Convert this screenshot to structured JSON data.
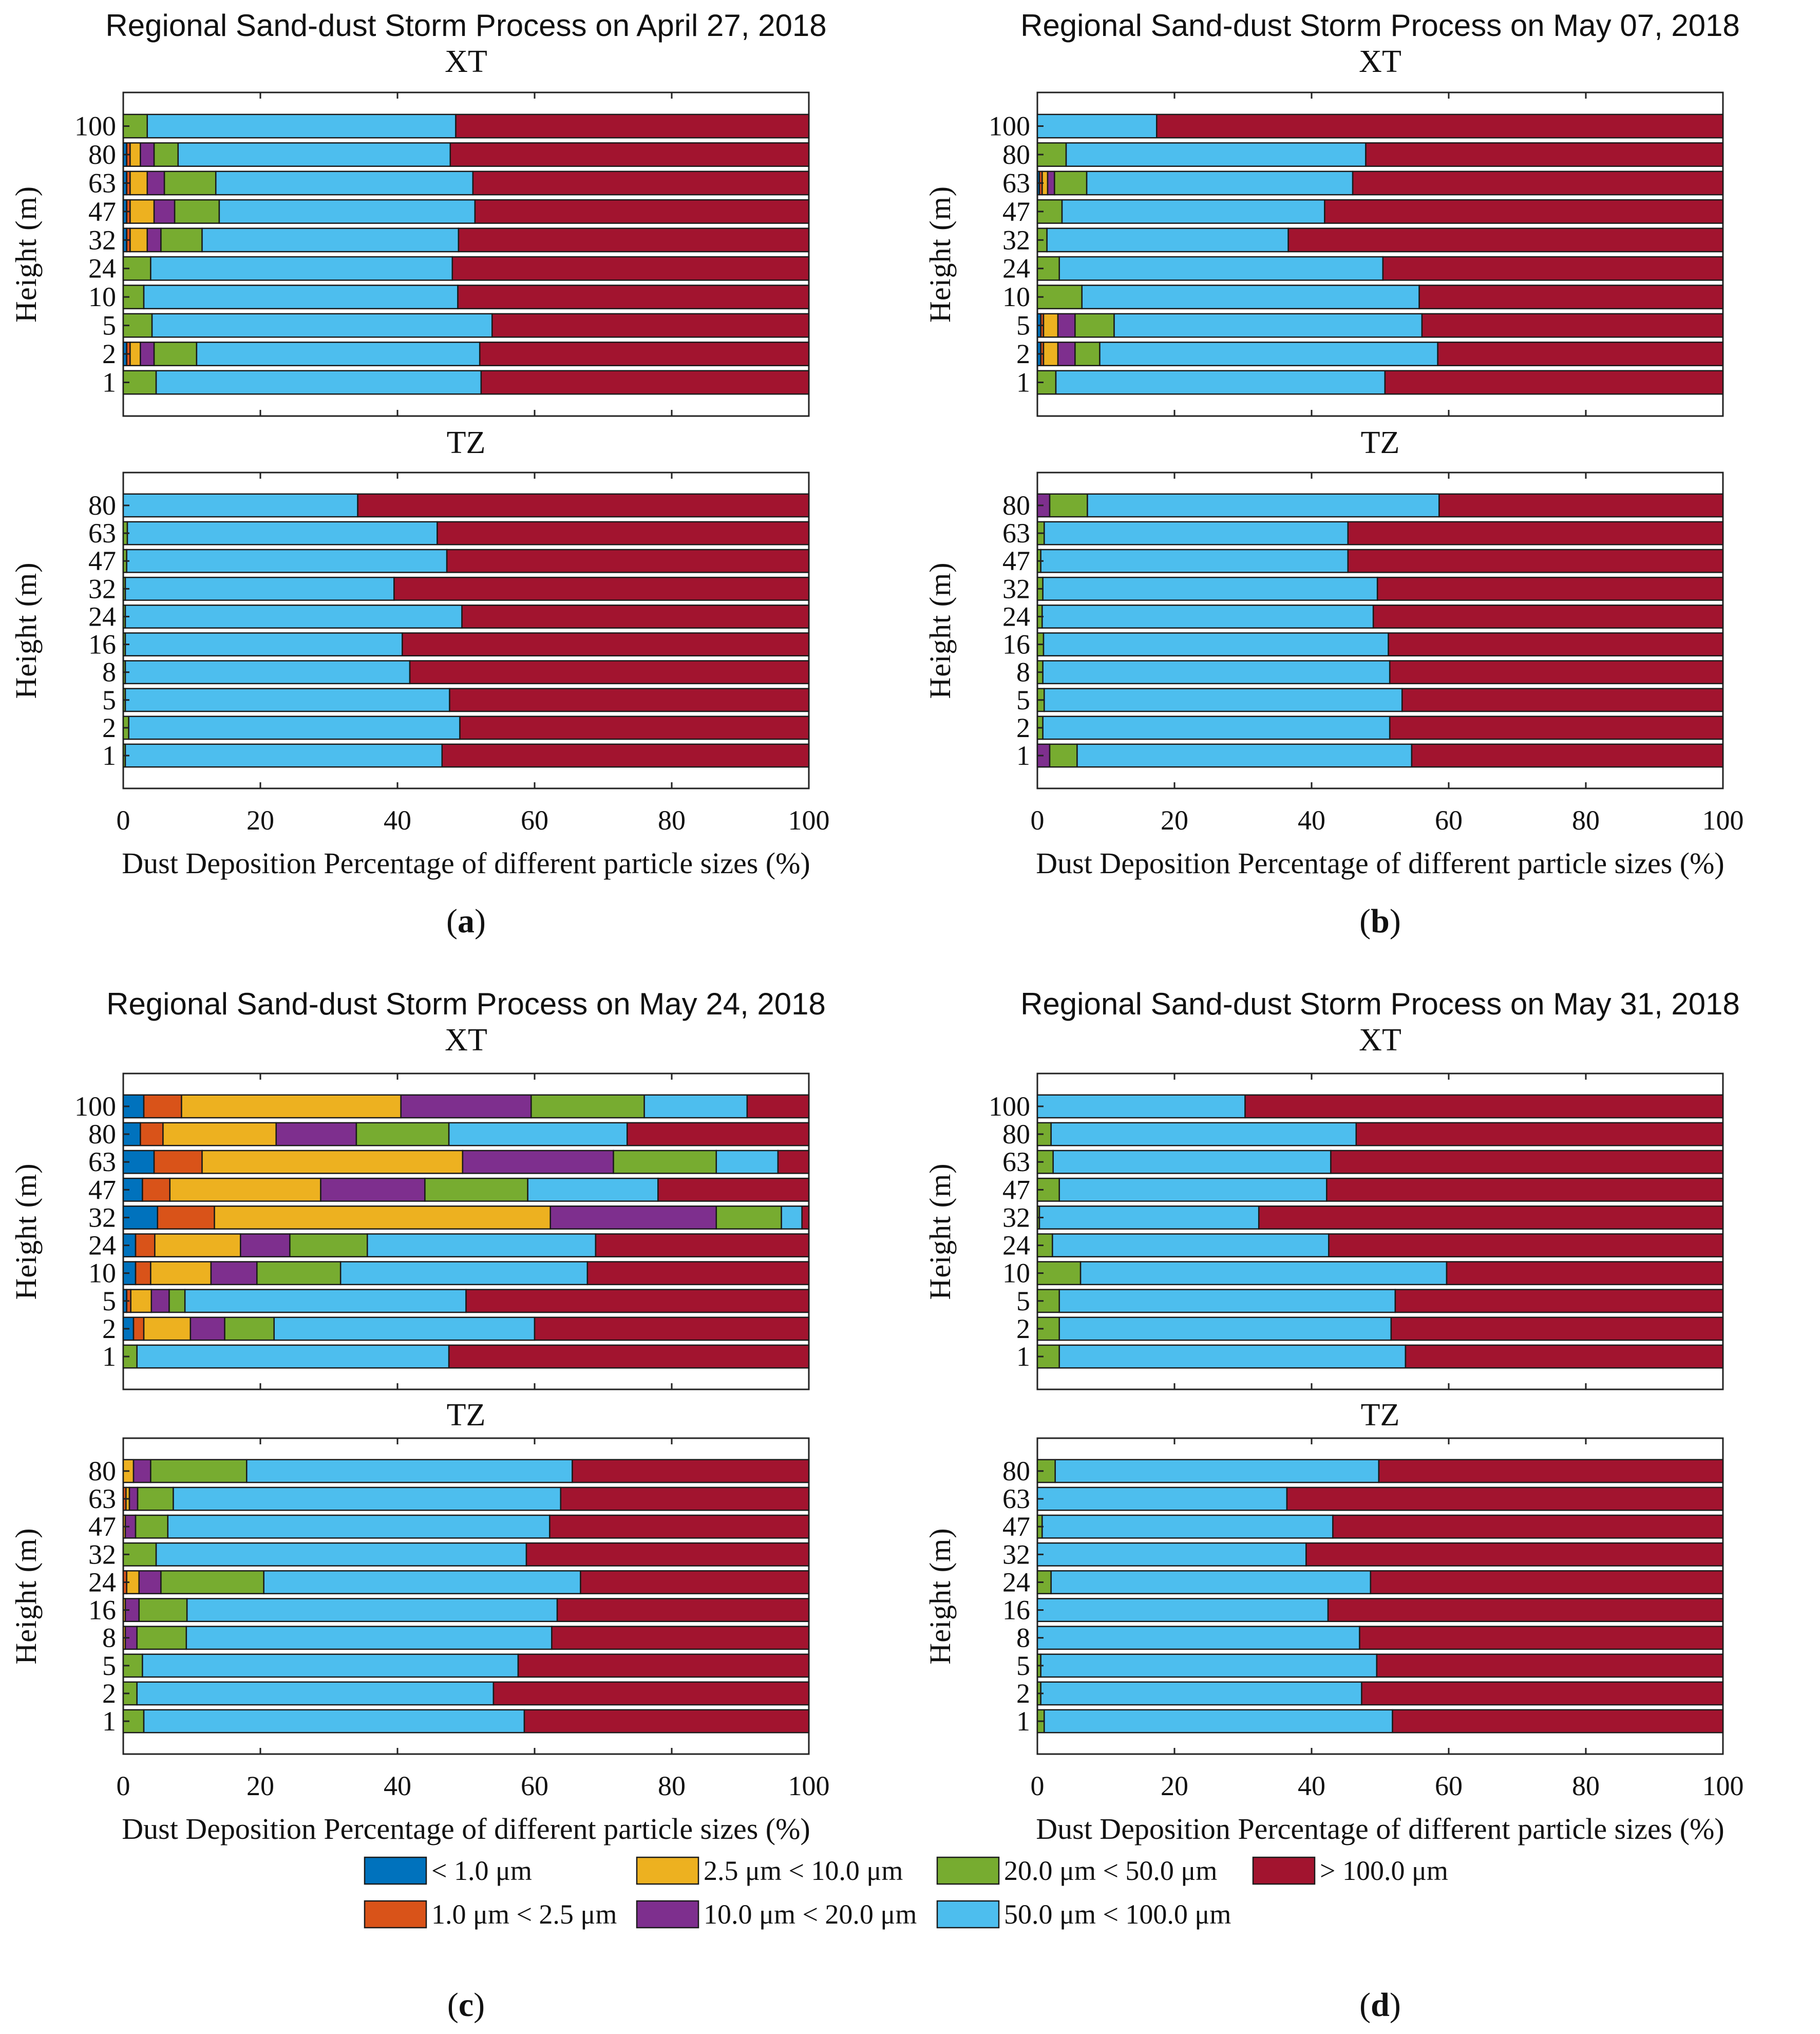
{
  "legend": {
    "items": [
      {
        "label": "< 1.0 μm",
        "color": "#0072BD"
      },
      {
        "label": "1.0 μm < 2.5 μm",
        "color": "#D95319"
      },
      {
        "label": "2.5 μm < 10.0 μm",
        "color": "#EDB120"
      },
      {
        "label": "10.0 μm < 20.0 μm",
        "color": "#7E2F8E"
      },
      {
        "label": "20.0 μm < 50.0 μm",
        "color": "#77AC30"
      },
      {
        "label": "50.0 μm < 100.0 μm",
        "color": "#4DBEEE"
      },
      {
        "label": "> 100.0 μm",
        "color": "#A2142F"
      }
    ]
  },
  "panels": [
    {
      "label": "a",
      "title": "Regional Sand-dust Storm Process on April 27, 2018"
    },
    {
      "label": "b",
      "title": "Regional Sand-dust Storm Process on May 07, 2018"
    },
    {
      "label": "c",
      "title": "Regional Sand-dust Storm Process on May 24, 2018"
    },
    {
      "label": "d",
      "title": "Regional Sand-dust Storm Process on May 31, 2018"
    }
  ],
  "chart_data": [
    {
      "type": "bar",
      "orientation": "horizontal",
      "stacked": true,
      "panel": "a",
      "title": "Regional Sand-dust Storm Process on April 27, 2018",
      "subtitle": "XT",
      "xlabel": "",
      "ylabel": "Height (m)",
      "xlim": [
        0,
        100
      ],
      "xticks": [],
      "categories": [
        "100",
        "80",
        "63",
        "47",
        "32",
        "24",
        "10",
        "5",
        "2",
        "1"
      ],
      "series": [
        {
          "name": "< 1.0 μm",
          "values": [
            0,
            0.5,
            0.5,
            0.5,
            0.5,
            0,
            0,
            0,
            0.5,
            0
          ]
        },
        {
          "name": "1.0 μm < 2.5 μm",
          "values": [
            0,
            0.5,
            0.5,
            0.5,
            0.5,
            0,
            0,
            0,
            0.5,
            0
          ]
        },
        {
          "name": "2.5 μm < 10.0 μm",
          "values": [
            0,
            1.5,
            2.5,
            3.5,
            2.5,
            0,
            0,
            0,
            1.5,
            0
          ]
        },
        {
          "name": "10.0 μm < 20.0 μm",
          "values": [
            0,
            2,
            2.5,
            3,
            2,
            0,
            0,
            0,
            2,
            0
          ]
        },
        {
          "name": "20.0 μm < 50.0 μm",
          "values": [
            3.5,
            3.5,
            7.5,
            6.5,
            6,
            4,
            3,
            4.2,
            6.2,
            4.8
          ]
        },
        {
          "name": "50.0 μm < 100.0 μm",
          "values": [
            45,
            39.7,
            37.5,
            37.3,
            37.4,
            44,
            45.8,
            49.6,
            41.3,
            47.4
          ]
        },
        {
          "name": "> 100.0 μm",
          "values": [
            51.5,
            52.3,
            49,
            48.7,
            51.1,
            52,
            51.2,
            46.2,
            48,
            47.8
          ]
        }
      ]
    },
    {
      "type": "bar",
      "orientation": "horizontal",
      "stacked": true,
      "panel": "a",
      "subtitle": "TZ",
      "xlabel": "Dust Deposition Percentage of different particle sizes (%)",
      "ylabel": "Height (m)",
      "xlim": [
        0,
        100
      ],
      "xticks": [
        "0",
        "20",
        "40",
        "60",
        "80",
        "100"
      ],
      "categories": [
        "80",
        "63",
        "47",
        "32",
        "24",
        "16",
        "8",
        "5",
        "2",
        "1"
      ],
      "series": [
        {
          "name": "< 1.0 μm",
          "values": [
            0,
            0,
            0,
            0,
            0,
            0,
            0,
            0,
            0,
            0
          ]
        },
        {
          "name": "1.0 μm < 2.5 μm",
          "values": [
            0,
            0,
            0,
            0,
            0,
            0,
            0,
            0,
            0,
            0
          ]
        },
        {
          "name": "2.5 μm < 10.0 μm",
          "values": [
            0,
            0,
            0,
            0,
            0,
            0,
            0,
            0,
            0,
            0
          ]
        },
        {
          "name": "10.0 μm < 20.0 μm",
          "values": [
            0,
            0,
            0,
            0,
            0,
            0,
            0,
            0,
            0,
            0
          ]
        },
        {
          "name": "20.0 μm < 50.0 μm",
          "values": [
            0,
            0.6,
            0.5,
            0.3,
            0.3,
            0.3,
            0.3,
            0.3,
            0.8,
            0.3
          ]
        },
        {
          "name": "50.0 μm < 100.0 μm",
          "values": [
            34.2,
            45.2,
            46.7,
            39.2,
            49.1,
            40.4,
            41.5,
            47.3,
            48.3,
            46.2
          ]
        },
        {
          "name": "> 100.0 μm",
          "values": [
            65.8,
            54.2,
            52.8,
            60.5,
            50.6,
            59.3,
            58.2,
            52.4,
            50.9,
            53.5
          ]
        }
      ]
    },
    {
      "type": "bar",
      "orientation": "horizontal",
      "stacked": true,
      "panel": "b",
      "title": "Regional Sand-dust Storm Process on May 07, 2018",
      "subtitle": "XT",
      "xlabel": "",
      "ylabel": "Height (m)",
      "xlim": [
        0,
        100
      ],
      "xticks": [],
      "categories": [
        "100",
        "80",
        "63",
        "47",
        "32",
        "24",
        "10",
        "5",
        "2",
        "1"
      ],
      "series": [
        {
          "name": "< 1.0 μm",
          "values": [
            0,
            0,
            0.3,
            0,
            0,
            0,
            0,
            0.5,
            0.5,
            0
          ]
        },
        {
          "name": "1.0 μm < 2.5 μm",
          "values": [
            0,
            0,
            0.4,
            0,
            0,
            0,
            0,
            0.4,
            0.4,
            0
          ]
        },
        {
          "name": "2.5 μm < 10.0 μm",
          "values": [
            0,
            0,
            0.8,
            0,
            0,
            0,
            0,
            2.1,
            2.1,
            0
          ]
        },
        {
          "name": "10.0 μm < 20.0 μm",
          "values": [
            0,
            0,
            1,
            0,
            0,
            0,
            0,
            2.5,
            2.5,
            0
          ]
        },
        {
          "name": "20.0 μm < 50.0 μm",
          "values": [
            0,
            4.2,
            4.7,
            3.6,
            1.4,
            3.2,
            6.5,
            5.7,
            3.6,
            2.7
          ]
        },
        {
          "name": "50.0 μm < 100.0 μm",
          "values": [
            17.4,
            43.7,
            38.8,
            38.3,
            35.2,
            47.2,
            49.2,
            44.9,
            49.3,
            48
          ]
        },
        {
          "name": "> 100.0 μm",
          "values": [
            82.6,
            52.1,
            54,
            58.1,
            63.4,
            49.6,
            44.3,
            43.9,
            41.6,
            49.3
          ]
        }
      ]
    },
    {
      "type": "bar",
      "orientation": "horizontal",
      "stacked": true,
      "panel": "b",
      "subtitle": "TZ",
      "xlabel": "Dust Deposition Percentage of different particle sizes (%)",
      "ylabel": "Height (m)",
      "xlim": [
        0,
        100
      ],
      "xticks": [
        "0",
        "20",
        "40",
        "60",
        "80",
        "100"
      ],
      "categories": [
        "80",
        "63",
        "47",
        "32",
        "24",
        "16",
        "8",
        "5",
        "2",
        "1"
      ],
      "series": [
        {
          "name": "< 1.0 μm",
          "values": [
            0,
            0,
            0,
            0,
            0,
            0,
            0,
            0,
            0,
            0
          ]
        },
        {
          "name": "1.0 μm < 2.5 μm",
          "values": [
            0,
            0,
            0,
            0,
            0,
            0,
            0,
            0,
            0,
            0
          ]
        },
        {
          "name": "2.5 μm < 10.0 μm",
          "values": [
            0,
            0,
            0,
            0,
            0,
            0,
            0,
            0,
            0,
            0
          ]
        },
        {
          "name": "10.0 μm < 20.0 μm",
          "values": [
            1.8,
            0,
            0,
            0,
            0,
            0,
            0,
            0,
            0,
            1.8
          ]
        },
        {
          "name": "20.0 μm < 50.0 μm",
          "values": [
            5.5,
            1,
            0.5,
            0.8,
            0.7,
            0.9,
            0.8,
            1,
            0.8,
            4
          ]
        },
        {
          "name": "50.0 μm < 100.0 μm",
          "values": [
            51.3,
            44.3,
            44.8,
            48.8,
            48.3,
            50.3,
            50.6,
            52.2,
            50.6,
            48.8
          ]
        },
        {
          "name": "> 100.0 μm",
          "values": [
            41.4,
            54.7,
            54.7,
            50.4,
            51,
            48.8,
            48.6,
            46.8,
            48.6,
            45.4
          ]
        }
      ]
    },
    {
      "type": "bar",
      "orientation": "horizontal",
      "stacked": true,
      "panel": "c",
      "title": "Regional Sand-dust Storm Process on May 24, 2018",
      "subtitle": "XT",
      "xlabel": "",
      "ylabel": "Height (m)",
      "xlim": [
        0,
        100
      ],
      "xticks": [],
      "categories": [
        "100",
        "80",
        "63",
        "47",
        "32",
        "24",
        "10",
        "5",
        "2",
        "1"
      ],
      "series": [
        {
          "name": "< 1.0 μm",
          "values": [
            3,
            2.5,
            4.5,
            2.8,
            5,
            1.8,
            1.8,
            0.5,
            1.5,
            0
          ]
        },
        {
          "name": "1.0 μm < 2.5 μm",
          "values": [
            5.5,
            3.3,
            7,
            4,
            8.3,
            2.8,
            2.2,
            0.6,
            1.5,
            0
          ]
        },
        {
          "name": "2.5 μm < 10.0 μm",
          "values": [
            32,
            16.5,
            38,
            22,
            49,
            12.5,
            8.8,
            3,
            6.8,
            0
          ]
        },
        {
          "name": "10.0 μm < 20.0 μm",
          "values": [
            19,
            11.7,
            22,
            15.2,
            24.2,
            7.2,
            6.7,
            2.6,
            5,
            0
          ]
        },
        {
          "name": "20.0 μm < 50.0 μm",
          "values": [
            16.5,
            13.5,
            15,
            15,
            9.5,
            11.3,
            12.2,
            2.3,
            7.2,
            2
          ]
        },
        {
          "name": "50.0 μm < 100.0 μm",
          "values": [
            15,
            26,
            9,
            19,
            3,
            33.3,
            36,
            41,
            38,
            45.5
          ]
        },
        {
          "name": "> 100.0 μm",
          "values": [
            9,
            26.5,
            4.5,
            22,
            1,
            31.1,
            32.3,
            50,
            40,
            52.5
          ]
        }
      ]
    },
    {
      "type": "bar",
      "orientation": "horizontal",
      "stacked": true,
      "panel": "c",
      "subtitle": "TZ",
      "xlabel": "Dust Deposition Percentage of different particle sizes (%)",
      "ylabel": "Height (m)",
      "xlim": [
        0,
        100
      ],
      "xticks": [
        "0",
        "20",
        "40",
        "60",
        "80",
        "100"
      ],
      "categories": [
        "80",
        "63",
        "47",
        "32",
        "24",
        "16",
        "8",
        "5",
        "2",
        "1"
      ],
      "series": [
        {
          "name": "< 1.0 μm",
          "values": [
            0,
            0,
            0,
            0,
            0,
            0,
            0,
            0,
            0,
            0
          ]
        },
        {
          "name": "1.0 μm < 2.5 μm",
          "values": [
            0,
            0.4,
            0,
            0,
            0.5,
            0,
            0,
            0,
            0,
            0
          ]
        },
        {
          "name": "2.5 μm < 10.0 μm",
          "values": [
            1.5,
            0.5,
            0.3,
            0,
            1.8,
            0.3,
            0.3,
            0,
            0,
            0
          ]
        },
        {
          "name": "10.0 μm < 20.0 μm",
          "values": [
            2.5,
            1.2,
            1.5,
            0,
            3.2,
            2,
            1.7,
            0,
            0,
            0
          ]
        },
        {
          "name": "20.0 μm < 50.0 μm",
          "values": [
            14,
            5.2,
            4.7,
            4.8,
            15,
            7,
            7.2,
            2.8,
            2,
            3
          ]
        },
        {
          "name": "50.0 μm < 100.0 μm",
          "values": [
            47.5,
            56.5,
            55.7,
            54,
            46.2,
            54,
            53.3,
            54.8,
            52,
            55.5
          ]
        },
        {
          "name": "> 100.0 μm",
          "values": [
            34.5,
            36.2,
            37.8,
            41.2,
            33.3,
            36.7,
            37.5,
            42.4,
            46,
            41.5
          ]
        }
      ]
    },
    {
      "type": "bar",
      "orientation": "horizontal",
      "stacked": true,
      "panel": "d",
      "title": "Regional Sand-dust Storm Process on May 31, 2018",
      "subtitle": "XT",
      "xlabel": "",
      "ylabel": "Height (m)",
      "xlim": [
        0,
        100
      ],
      "xticks": [],
      "categories": [
        "100",
        "80",
        "63",
        "47",
        "32",
        "24",
        "10",
        "5",
        "2",
        "1"
      ],
      "series": [
        {
          "name": "< 1.0 μm",
          "values": [
            0,
            0,
            0,
            0,
            0,
            0,
            0,
            0,
            0,
            0
          ]
        },
        {
          "name": "1.0 μm < 2.5 μm",
          "values": [
            0,
            0,
            0,
            0,
            0,
            0,
            0,
            0,
            0,
            0
          ]
        },
        {
          "name": "2.5 μm < 10.0 μm",
          "values": [
            0,
            0,
            0,
            0,
            0,
            0,
            0,
            0,
            0,
            0
          ]
        },
        {
          "name": "10.0 μm < 20.0 μm",
          "values": [
            0,
            0,
            0,
            0,
            0,
            0,
            0,
            0,
            0,
            0
          ]
        },
        {
          "name": "20.0 μm < 50.0 μm",
          "values": [
            0,
            2,
            2.3,
            3.2,
            0.3,
            2.2,
            6.3,
            3.2,
            3.2,
            3.2
          ]
        },
        {
          "name": "50.0 μm < 100.0 μm",
          "values": [
            30.3,
            44.5,
            40.5,
            39,
            32,
            40.3,
            53.4,
            49,
            48.4,
            50.5
          ]
        },
        {
          "name": "> 100.0 μm",
          "values": [
            69.7,
            53.5,
            57.2,
            57.8,
            67.7,
            57.5,
            40.3,
            47.8,
            48.4,
            46.3
          ]
        }
      ]
    },
    {
      "type": "bar",
      "orientation": "horizontal",
      "stacked": true,
      "panel": "d",
      "subtitle": "TZ",
      "xlabel": "Dust Deposition Percentage of different particle sizes (%)",
      "ylabel": "Height (m)",
      "xlim": [
        0,
        100
      ],
      "xticks": [
        "0",
        "20",
        "40",
        "60",
        "80",
        "100"
      ],
      "categories": [
        "80",
        "63",
        "47",
        "32",
        "24",
        "16",
        "8",
        "5",
        "2",
        "1"
      ],
      "series": [
        {
          "name": "< 1.0 μm",
          "values": [
            0,
            0,
            0,
            0,
            0,
            0,
            0,
            0,
            0,
            0
          ]
        },
        {
          "name": "1.0 μm < 2.5 μm",
          "values": [
            0,
            0,
            0,
            0,
            0,
            0,
            0,
            0,
            0,
            0
          ]
        },
        {
          "name": "2.5 μm < 10.0 μm",
          "values": [
            0,
            0,
            0,
            0,
            0,
            0,
            0,
            0,
            0,
            0
          ]
        },
        {
          "name": "10.0 μm < 20.0 μm",
          "values": [
            0,
            0,
            0,
            0,
            0,
            0,
            0,
            0,
            0,
            0
          ]
        },
        {
          "name": "20.0 μm < 50.0 μm",
          "values": [
            2.6,
            0,
            0.7,
            0,
            2,
            0,
            0,
            0.5,
            0.5,
            1
          ]
        },
        {
          "name": "50.0 μm < 100.0 μm",
          "values": [
            47.2,
            36.4,
            42.4,
            39.2,
            46.6,
            42.4,
            47,
            49,
            46.8,
            50.8
          ]
        },
        {
          "name": "> 100.0 μm",
          "values": [
            50.2,
            63.6,
            56.9,
            60.8,
            51.4,
            57.6,
            53,
            50.5,
            52.7,
            48.2
          ]
        }
      ]
    }
  ]
}
